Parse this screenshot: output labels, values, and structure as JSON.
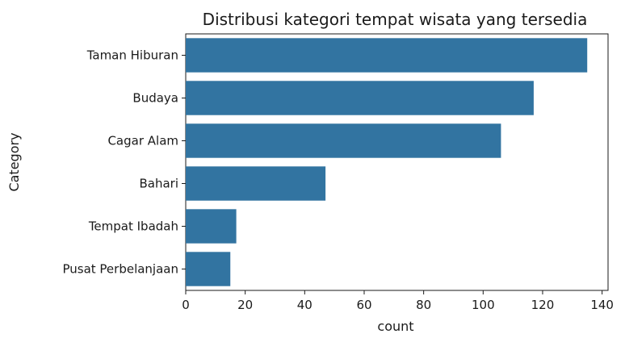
{
  "chart_data": {
    "type": "bar",
    "orientation": "horizontal",
    "title": "Distribusi kategori tempat wisata yang tersedia",
    "xlabel": "count",
    "ylabel": "Category",
    "categories": [
      "Taman Hiburan",
      "Budaya",
      "Cagar Alam",
      "Bahari",
      "Tempat Ibadah",
      "Pusat Perbelanjaan"
    ],
    "values": [
      135,
      117,
      106,
      47,
      17,
      15
    ],
    "xlim": [
      0,
      142
    ],
    "xticks": [
      0,
      20,
      40,
      60,
      80,
      100,
      120,
      140
    ],
    "xtick_labels": [
      "0",
      "20",
      "40",
      "60",
      "80",
      "100",
      "120",
      "140"
    ],
    "grid": false,
    "bar_color": "#3274a1"
  }
}
